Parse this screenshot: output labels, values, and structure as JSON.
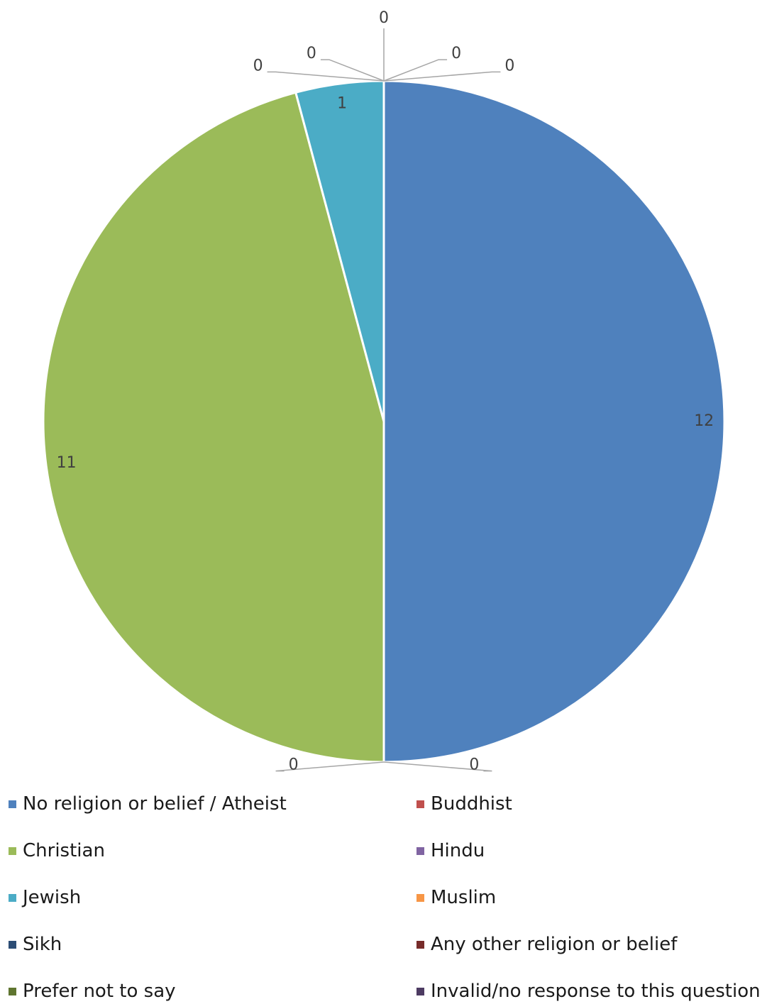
{
  "chart_data": {
    "type": "pie",
    "title": "",
    "categories": [
      "No religion or belief / Atheist",
      "Buddhist",
      "Christian",
      "Hindu",
      "Jewish",
      "Muslim",
      "Sikh",
      "Any other religion or belief",
      "Prefer not to say",
      "Invalid/no response to this question"
    ],
    "values": [
      12,
      0,
      11,
      0,
      1,
      0,
      0,
      0,
      0,
      0
    ],
    "colors": [
      "#4F81BD",
      "#C0504D",
      "#9BBB59",
      "#8064A2",
      "#4BACC6",
      "#F79646",
      "#2C4D75",
      "#772C2A",
      "#5F7530",
      "#4D3B62"
    ],
    "slice_order": [
      "No religion or belief / Atheist",
      "Sikh",
      "Any other religion or belief",
      "Christian",
      "Jewish",
      "Buddhist",
      "Hindu",
      "Muslim",
      "Prefer not to say",
      "Invalid/no response to this question"
    ],
    "data_labels": [
      "12",
      "0",
      "11",
      "0",
      "1",
      "0",
      "0",
      "0",
      "0",
      "0"
    ],
    "legend_position": "bottom"
  },
  "legend": {
    "items": [
      {
        "label": "No religion or belief / Atheist",
        "color": "#4F81BD"
      },
      {
        "label": "Buddhist",
        "color": "#C0504D"
      },
      {
        "label": "Christian",
        "color": "#9BBB59"
      },
      {
        "label": "Hindu",
        "color": "#8064A2"
      },
      {
        "label": "Jewish",
        "color": "#4BACC6"
      },
      {
        "label": "Muslim",
        "color": "#F79646"
      },
      {
        "label": "Sikh",
        "color": "#2C4D75"
      },
      {
        "label": "Any other religion or belief",
        "color": "#772C2A"
      },
      {
        "label": "Prefer not to say",
        "color": "#5F7530"
      },
      {
        "label": "Invalid/no response to this question",
        "color": "#4D3B62"
      }
    ]
  }
}
